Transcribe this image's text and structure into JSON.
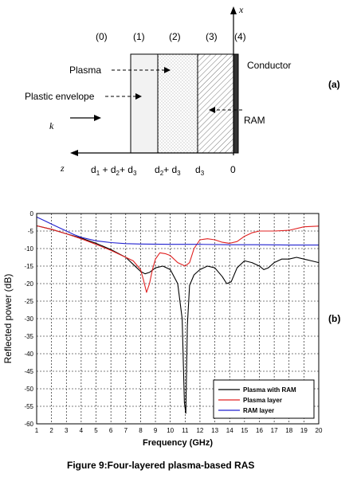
{
  "figure_caption": "Figure 9:Four-layered plasma-based RAS",
  "diagram": {
    "panel_label": "(a)",
    "layer_numbers": [
      "(0)",
      "(1)",
      "(2)",
      "(3)",
      "(4)"
    ],
    "x_axis_label": "x",
    "z_axis_label": "z",
    "k_label": "k",
    "labels": {
      "plasma": "Plasma",
      "plastic_envelope": "Plastic envelope",
      "conductor": "Conductor",
      "ram": "RAM"
    },
    "z_positions": {
      "p1": "d",
      "p1_sub": "1",
      "p1_mid": " + d",
      "p1_mid_sub": "2",
      "p1_end": "+ d",
      "p1_end_sub": "3",
      "p2": "d",
      "p2_sub": "2",
      "p2_end": "+ d",
      "p2_end_sub": "3",
      "p3": "d",
      "p3_sub": "3",
      "p4": "0"
    }
  },
  "chart_data": {
    "panel_label": "(b)",
    "type": "line",
    "title": "",
    "xlabel": "Frequency (GHz)",
    "ylabel": "Reflected power (dB)",
    "xlim": [
      1,
      20
    ],
    "ylim": [
      -60,
      0
    ],
    "xticks": [
      1,
      2,
      3,
      4,
      5,
      6,
      7,
      8,
      9,
      10,
      11,
      12,
      13,
      14,
      15,
      16,
      17,
      18,
      19,
      20
    ],
    "yticks": [
      0,
      -5,
      -10,
      -15,
      -20,
      -25,
      -30,
      -35,
      -40,
      -45,
      -50,
      -55,
      -60
    ],
    "grid": true,
    "legend_position": "bottom-right",
    "series": [
      {
        "name": "Plasma with RAM",
        "color": "#000000",
        "x": [
          1.0,
          2.0,
          3.0,
          4.0,
          5.0,
          6.0,
          7.0,
          7.5,
          8.0,
          8.3,
          8.6,
          9.0,
          9.5,
          10.0,
          10.5,
          10.8,
          10.95,
          11.05,
          11.15,
          11.3,
          11.6,
          12.0,
          12.5,
          13.0,
          13.5,
          13.8,
          14.1,
          14.5,
          15.0,
          15.5,
          16.0,
          16.3,
          16.6,
          17.0,
          17.5,
          18.0,
          18.5,
          19.0,
          19.5,
          20.0
        ],
        "values": [
          -3.5,
          -4.5,
          -5.8,
          -7.0,
          -8.5,
          -10.3,
          -12.5,
          -14.5,
          -16.5,
          -17.2,
          -16.8,
          -15.5,
          -15.0,
          -16.0,
          -20.0,
          -30.0,
          -54.0,
          -57.0,
          -32.0,
          -20.5,
          -17.5,
          -16.0,
          -15.0,
          -15.5,
          -18.0,
          -20.0,
          -19.5,
          -15.5,
          -13.5,
          -14.0,
          -15.0,
          -16.0,
          -15.5,
          -14.0,
          -13.0,
          -13.0,
          -12.5,
          -13.0,
          -13.5,
          -14.0
        ]
      },
      {
        "name": "Plasma layer",
        "color": "#e02020",
        "x": [
          1.0,
          2.0,
          3.0,
          4.0,
          5.0,
          6.0,
          7.0,
          7.5,
          8.0,
          8.2,
          8.4,
          8.6,
          8.8,
          9.0,
          9.3,
          9.7,
          10.0,
          10.5,
          11.0,
          11.3,
          11.6,
          12.0,
          12.5,
          13.0,
          13.5,
          14.0,
          14.5,
          15.0,
          15.5,
          16.0,
          16.5,
          17.0,
          18.0,
          19.0,
          20.0
        ],
        "values": [
          -3.5,
          -4.5,
          -5.8,
          -7.2,
          -8.8,
          -10.5,
          -12.5,
          -13.5,
          -16.0,
          -19.0,
          -22.5,
          -20.0,
          -16.0,
          -13.0,
          -11.2,
          -11.5,
          -12.0,
          -14.0,
          -15.0,
          -14.0,
          -10.0,
          -7.5,
          -7.2,
          -7.5,
          -8.2,
          -8.5,
          -8.0,
          -6.5,
          -5.5,
          -5.0,
          -5.0,
          -5.0,
          -4.8,
          -3.8,
          -3.6
        ]
      },
      {
        "name": "RAM layer",
        "color": "#2020d0",
        "x": [
          1.0,
          1.5,
          2.0,
          2.5,
          3.0,
          3.5,
          4.0,
          5.0,
          6.0,
          7.0,
          8.0,
          10.0,
          12.0,
          14.0,
          16.0,
          18.0,
          20.0
        ],
        "values": [
          -1.0,
          -2.0,
          -3.0,
          -4.0,
          -5.0,
          -6.0,
          -6.8,
          -7.8,
          -8.3,
          -8.6,
          -8.7,
          -8.8,
          -8.8,
          -8.9,
          -8.9,
          -9.0,
          -9.0
        ]
      }
    ]
  }
}
